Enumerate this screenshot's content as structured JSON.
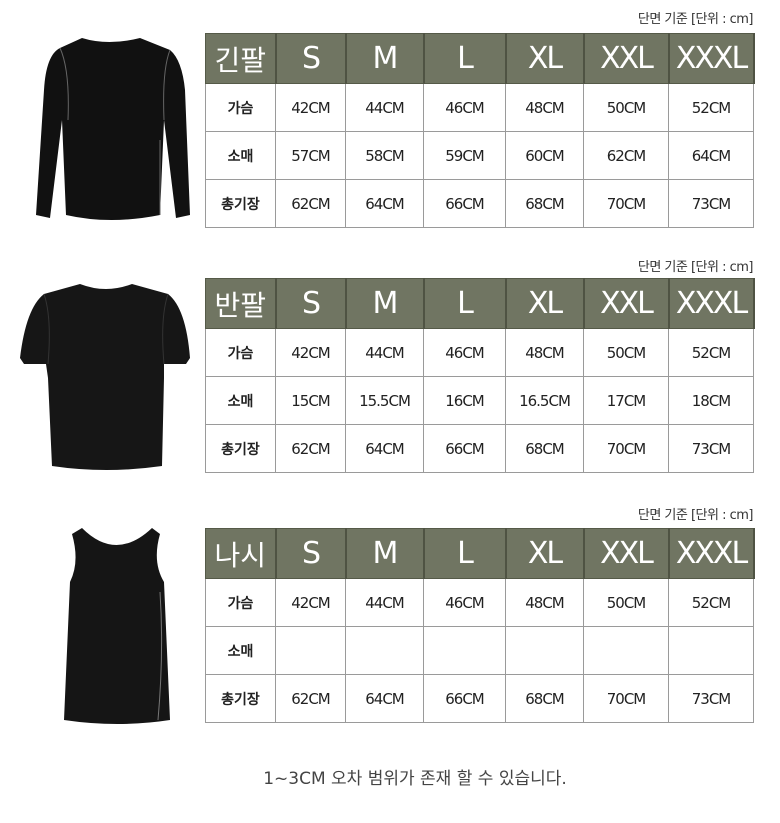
{
  "unit_label": "단면 기준 [단위 : cm]",
  "sizes": [
    "S",
    "M",
    "L",
    "XL",
    "XXL",
    "XXXL"
  ],
  "tables": [
    {
      "title": "긴팔",
      "image": "long-sleeve-shirt",
      "rows": [
        {
          "label": "가슴",
          "values": [
            "42CM",
            "44CM",
            "46CM",
            "48CM",
            "50CM",
            "52CM"
          ]
        },
        {
          "label": "소매",
          "values": [
            "57CM",
            "58CM",
            "59CM",
            "60CM",
            "62CM",
            "64CM"
          ]
        },
        {
          "label": "총기장",
          "values": [
            "62CM",
            "64CM",
            "66CM",
            "68CM",
            "70CM",
            "73CM"
          ]
        }
      ]
    },
    {
      "title": "반팔",
      "image": "short-sleeve-shirt",
      "rows": [
        {
          "label": "가슴",
          "values": [
            "42CM",
            "44CM",
            "46CM",
            "48CM",
            "50CM",
            "52CM"
          ]
        },
        {
          "label": "소매",
          "values": [
            "15CM",
            "15.5CM",
            "16CM",
            "16.5CM",
            "17CM",
            "18CM"
          ]
        },
        {
          "label": "총기장",
          "values": [
            "62CM",
            "64CM",
            "66CM",
            "68CM",
            "70CM",
            "73CM"
          ]
        }
      ]
    },
    {
      "title": "나시",
      "image": "sleeveless-shirt",
      "rows": [
        {
          "label": "가슴",
          "values": [
            "42CM",
            "44CM",
            "46CM",
            "48CM",
            "50CM",
            "52CM"
          ]
        },
        {
          "label": "소매",
          "values": [
            "",
            "",
            "",
            "",
            "",
            ""
          ]
        },
        {
          "label": "총기장",
          "values": [
            "62CM",
            "64CM",
            "66CM",
            "68CM",
            "70CM",
            "73CM"
          ]
        }
      ]
    }
  ],
  "footer_note": "1~3CM 오차 범위가 존재 할 수 있습니다.",
  "colors": {
    "header_bg": "#707562",
    "header_text": "#ffffff",
    "border": "#9a9a9a"
  }
}
